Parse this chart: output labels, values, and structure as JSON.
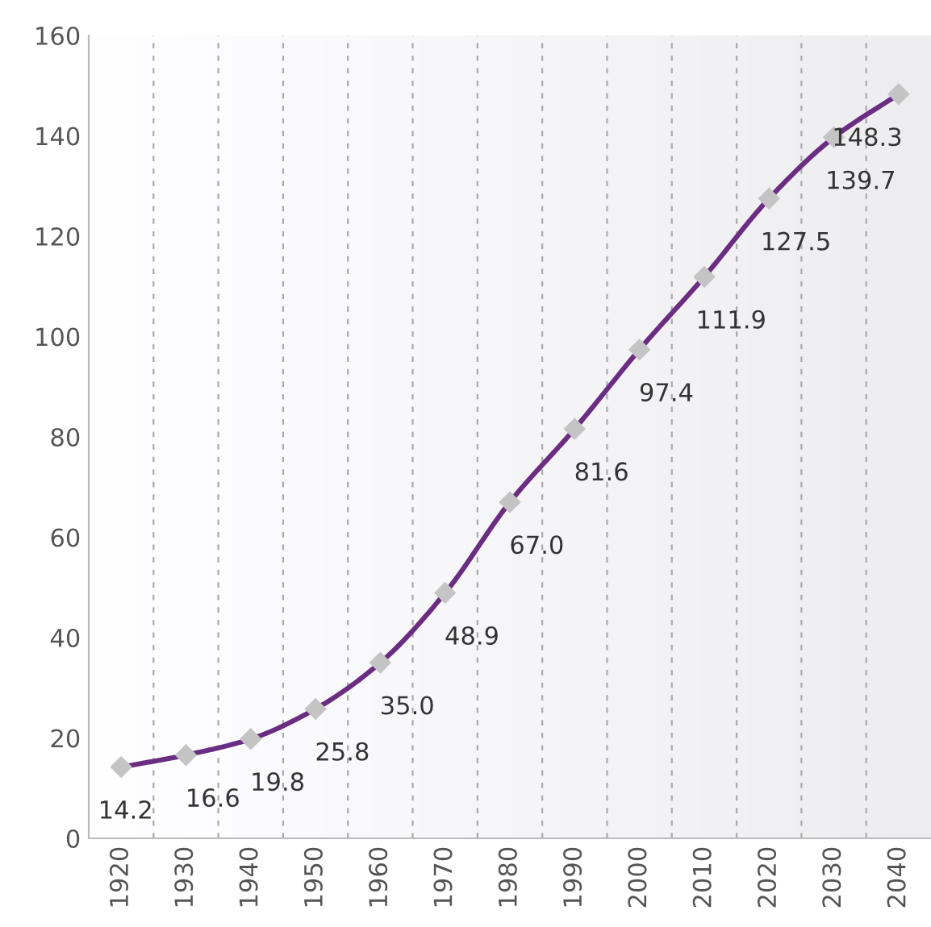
{
  "chart_data": {
    "type": "line",
    "categories": [
      "1920",
      "1930",
      "1940",
      "1950",
      "1960",
      "1970",
      "1980",
      "1990",
      "2000",
      "2010",
      "2020",
      "2030",
      "2040"
    ],
    "series": [
      {
        "color": "#6b2d82",
        "values": [
          14.2,
          16.6,
          19.8,
          25.8,
          35.0,
          48.9,
          67.0,
          81.6,
          97.4,
          111.9,
          127.5,
          139.7,
          148.3
        ],
        "value_labels": [
          "14.2",
          "16.6",
          "19.8",
          "25.8",
          "35.0",
          "48.9",
          "67.0",
          "81.6",
          "97.4",
          "111.9",
          "127.5",
          "139.7",
          "148.3"
        ]
      }
    ],
    "ylim": [
      0,
      160
    ],
    "yticks": [
      0,
      20,
      40,
      60,
      80,
      100,
      120,
      140,
      160
    ],
    "grid": "x",
    "marker": "diamond",
    "line_style": "solid",
    "legend": false
  }
}
